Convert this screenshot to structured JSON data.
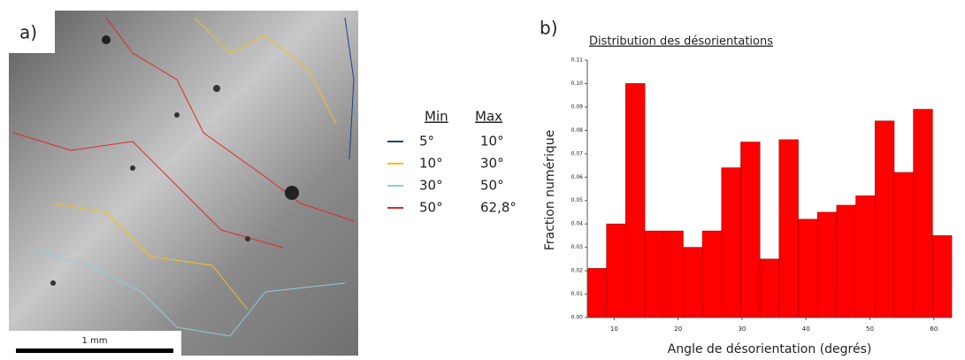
{
  "panel_a": {
    "label": "a)",
    "scale_bar": "1 mm",
    "legend": {
      "headers": [
        "Min",
        "Max"
      ],
      "rows": [
        {
          "min": "5°",
          "max": "10°",
          "color": "#1f3f8f"
        },
        {
          "min": "10°",
          "max": "30°",
          "color": "#f2c01e"
        },
        {
          "min": "30°",
          "max": "50°",
          "color": "#8ccfd6"
        },
        {
          "min": "50°",
          "max": "62,8°",
          "color": "#e0282a"
        }
      ]
    }
  },
  "panel_b_label": "b)",
  "chart_data": {
    "type": "histogram",
    "title": "Distribution des désorientations",
    "x_label": "Angle de désorientation (degrés)",
    "y_label": "Fraction numérique",
    "bins": [
      5.8,
      8.8,
      11.8,
      14.8,
      17.8,
      20.8,
      23.8,
      26.8,
      29.8,
      32.8,
      35.8,
      38.8,
      41.8,
      44.8,
      47.8,
      50.8,
      53.8,
      56.8,
      59.8,
      62.8
    ],
    "values": [
      0.021,
      0.04,
      0.1,
      0.037,
      0.037,
      0.03,
      0.037,
      0.064,
      0.075,
      0.025,
      0.076,
      0.042,
      0.045,
      0.048,
      0.052,
      0.084,
      0.062,
      0.089,
      0.035
    ],
    "color": "#ff0000",
    "xlim": [
      5.8,
      62.8
    ],
    "ylim": [
      0,
      0.11
    ],
    "xticks": [
      10,
      20,
      30,
      40,
      50,
      60
    ],
    "yticks": [
      {
        "value": 0,
        "label": "0.00"
      },
      0.01,
      0.02,
      0.03,
      0.04,
      0.05,
      0.06,
      0.07,
      0.08,
      0.09,
      {
        "value": 0.1,
        "label": "0.10"
      },
      0.11
    ]
  }
}
